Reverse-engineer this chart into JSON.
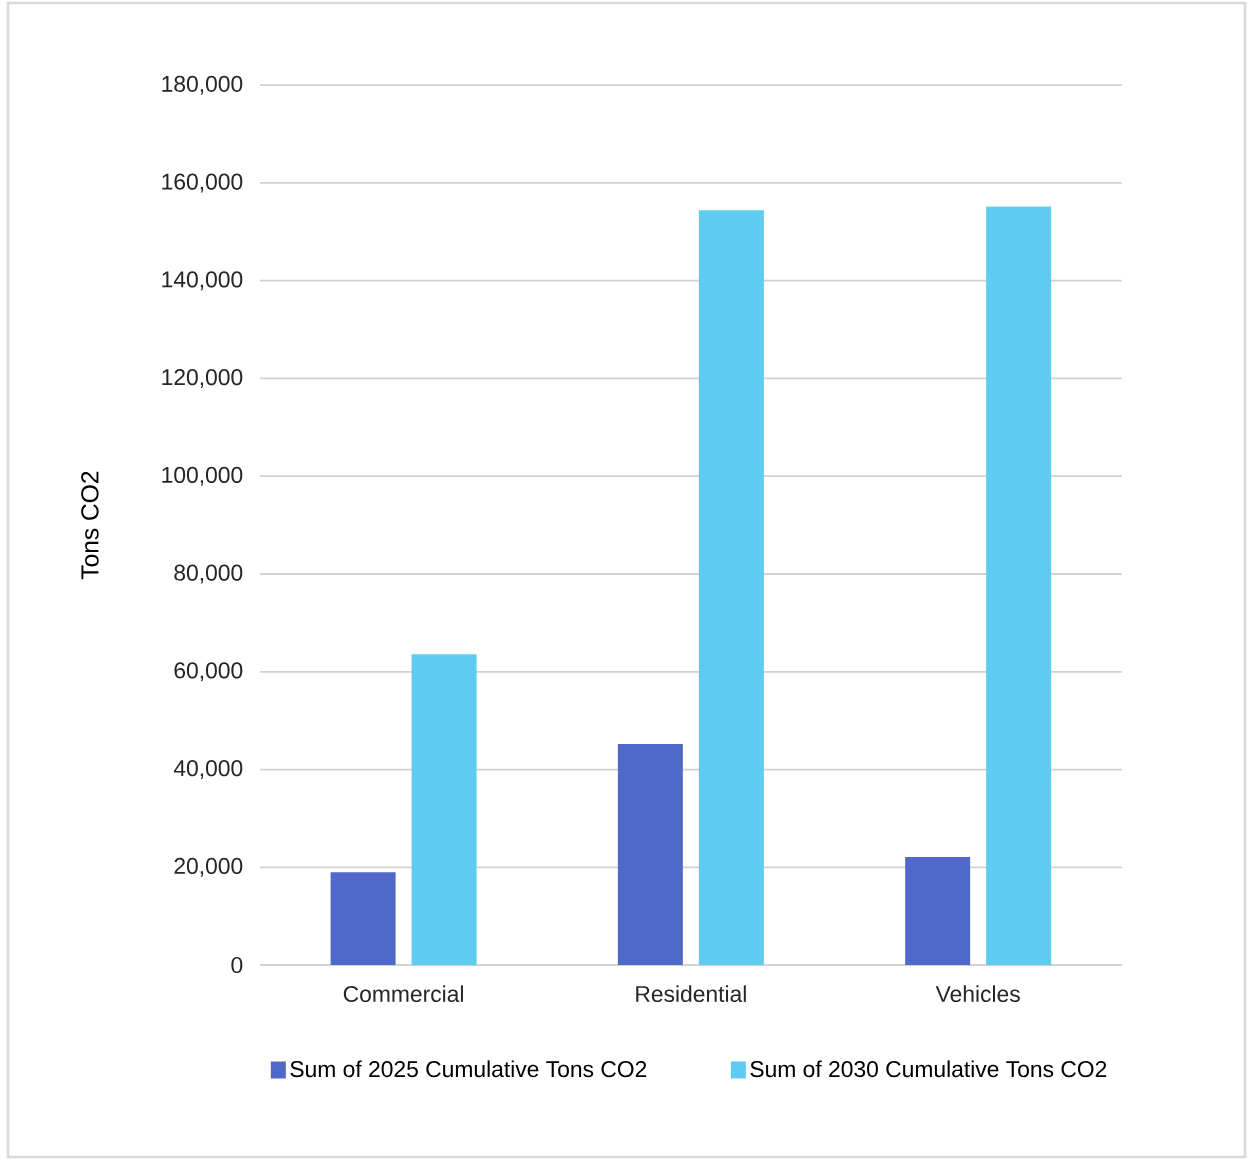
{
  "chart_data": {
    "type": "bar",
    "ylabel": "Tons CO2",
    "categories": [
      "Commercial",
      "Residential",
      "Vehicles"
    ],
    "series": [
      {
        "name": "Sum of 2025 Cumulative Tons CO2",
        "color": "#5068c8",
        "values": [
          19000,
          45200,
          22100
        ]
      },
      {
        "name": "Sum of 2030 Cumulative Tons CO2",
        "color": "#5ecbf0",
        "values": [
          63600,
          154400,
          155200
        ]
      }
    ],
    "ylim": [
      0,
      180000
    ],
    "yticks": [
      {
        "value": 0,
        "label": "0"
      },
      {
        "value": 20000,
        "label": "20,000"
      },
      {
        "value": 40000,
        "label": "40,000"
      },
      {
        "value": 60000,
        "label": "60,000"
      },
      {
        "value": 80000,
        "label": "80,000"
      },
      {
        "value": 100000,
        "label": "100,000"
      },
      {
        "value": 120000,
        "label": "120,000"
      },
      {
        "value": 140000,
        "label": "140,000"
      },
      {
        "value": 160000,
        "label": "160,000"
      },
      {
        "value": 180000,
        "label": "180,000"
      }
    ],
    "grid": "y",
    "legend": "bottom"
  }
}
